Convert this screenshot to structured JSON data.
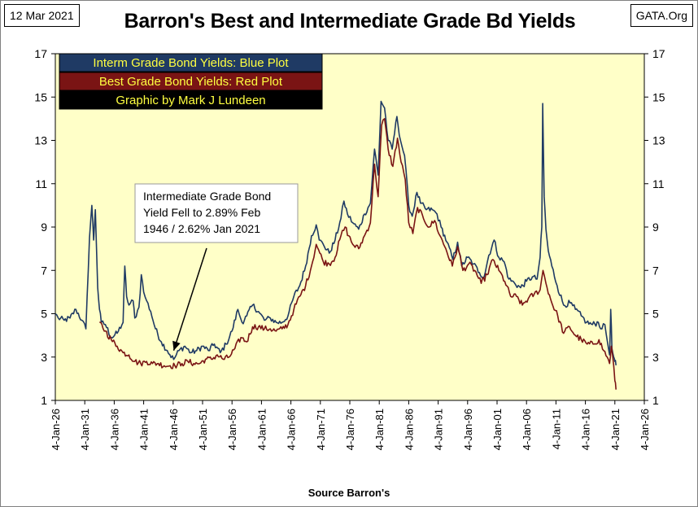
{
  "header": {
    "date": "12 Mar 2021",
    "site": "GATA.Org"
  },
  "chart_data": {
    "type": "line",
    "title": "Barron's Best and Intermediate Grade Bd Yields",
    "xlabel": "Source Barron's",
    "ylabel": "",
    "ylim": [
      1,
      17
    ],
    "yticks": [
      1,
      3,
      5,
      7,
      9,
      11,
      13,
      15,
      17
    ],
    "xlim": [
      1926,
      2026
    ],
    "xticks": [
      {
        "year": 1926,
        "label": "4-Jan-26"
      },
      {
        "year": 1931,
        "label": "4-Jan-31"
      },
      {
        "year": 1936,
        "label": "4-Jan-36"
      },
      {
        "year": 1941,
        "label": "4-Jan-41"
      },
      {
        "year": 1946,
        "label": "4-Jan-46"
      },
      {
        "year": 1951,
        "label": "4-Jan-51"
      },
      {
        "year": 1956,
        "label": "4-Jan-56"
      },
      {
        "year": 1961,
        "label": "4-Jan-61"
      },
      {
        "year": 1966,
        "label": "4-Jan-66"
      },
      {
        "year": 1971,
        "label": "4-Jan-71"
      },
      {
        "year": 1976,
        "label": "4-Jan-76"
      },
      {
        "year": 1981,
        "label": "4-Jan-81"
      },
      {
        "year": 1986,
        "label": "4-Jan-86"
      },
      {
        "year": 1991,
        "label": "4-Jan-91"
      },
      {
        "year": 1996,
        "label": "4-Jan-96"
      },
      {
        "year": 2001,
        "label": "4-Jan-01"
      },
      {
        "year": 2006,
        "label": "4-Jan-06"
      },
      {
        "year": 2011,
        "label": "4-Jan-11"
      },
      {
        "year": 2016,
        "label": "4-Jan-16"
      },
      {
        "year": 2021,
        "label": "4-Jan-21"
      },
      {
        "year": 2026,
        "label": "4-Jan-26"
      }
    ],
    "grid": false,
    "legend_position": "top-left",
    "legend": [
      {
        "text": "Interm Grade Bond Yields: Blue Plot",
        "bg": "#1f3a64"
      },
      {
        "text": "Best Grade Bond Yields: Red Plot",
        "bg": "#7a1414"
      },
      {
        "text": "Graphic by Mark J Lundeen",
        "bg": "#000000"
      }
    ],
    "annotation": {
      "lines": [
        "Intermediate Grade Bond",
        "Yield Fell to 2.89% Feb",
        "1946 / 2.62%  Jan 2021"
      ],
      "arrow_target": {
        "x": 1946.1,
        "y": 3.3
      }
    },
    "series": [
      {
        "color": "#1f3a64",
        "x": [
          1926.0,
          1926.5,
          1927.5,
          1928.5,
          1929.5,
          1930.5,
          1931.2,
          1931.8,
          1932.2,
          1932.5,
          1932.8,
          1933.2,
          1933.5,
          1933.8,
          1934.5,
          1935.5,
          1936.5,
          1937.5,
          1937.8,
          1938.1,
          1938.5,
          1939.2,
          1939.5,
          1940.2,
          1940.6,
          1941.0,
          1941.5,
          1942.2,
          1943.0,
          1944.0,
          1945.0,
          1946.1,
          1947.0,
          1948.0,
          1949.0,
          1950.0,
          1951.0,
          1952.0,
          1953.0,
          1954.0,
          1955.0,
          1956.0,
          1957.0,
          1957.7,
          1958.5,
          1959.5,
          1960.5,
          1961.5,
          1962.5,
          1963.5,
          1964.5,
          1965.5,
          1966.5,
          1967.5,
          1968.5,
          1969.5,
          1970.3,
          1970.8,
          1971.5,
          1972.5,
          1973.5,
          1974.5,
          1975.0,
          1975.6,
          1976.5,
          1977.5,
          1978.5,
          1979.5,
          1980.2,
          1980.8,
          1981.3,
          1981.9,
          1982.5,
          1983.2,
          1984.0,
          1984.6,
          1985.3,
          1986.0,
          1986.6,
          1987.4,
          1988.0,
          1989.0,
          1990.0,
          1990.8,
          1991.5,
          1992.5,
          1993.5,
          1994.3,
          1995.0,
          1996.0,
          1997.0,
          1998.0,
          1998.8,
          1999.6,
          2000.5,
          2001.3,
          2002.2,
          2003.0,
          2004.0,
          2005.0,
          2006.0,
          2007.0,
          2007.8,
          2008.3,
          2008.6,
          2008.75,
          2009.0,
          2009.3,
          2009.7,
          2010.3,
          2011.2,
          2012.3,
          2013.4,
          2014.3,
          2015.3,
          2016.2,
          2017.2,
          2018.2,
          2018.8,
          2019.3,
          2019.8,
          2020.1,
          2020.3,
          2020.5,
          2020.8,
          2021.0,
          2021.2
        ],
        "y": [
          5.0,
          4.8,
          4.7,
          4.8,
          5.2,
          4.7,
          4.3,
          8.5,
          10.0,
          8.4,
          9.8,
          6.2,
          5.2,
          4.6,
          4.5,
          3.9,
          4.1,
          4.6,
          7.2,
          5.8,
          5.4,
          5.6,
          4.8,
          5.3,
          6.8,
          6.0,
          5.6,
          5.1,
          4.3,
          3.7,
          3.3,
          2.89,
          3.3,
          3.5,
          3.2,
          3.3,
          3.5,
          3.3,
          3.6,
          3.2,
          3.6,
          4.2,
          5.2,
          4.6,
          4.9,
          5.4,
          5.1,
          4.7,
          4.8,
          4.6,
          4.6,
          4.9,
          5.8,
          6.3,
          7.2,
          8.6,
          9.1,
          8.4,
          8.2,
          7.8,
          8.4,
          9.4,
          10.2,
          9.6,
          9.2,
          8.9,
          9.6,
          10.1,
          12.6,
          11.4,
          14.8,
          14.5,
          13.0,
          12.6,
          14.1,
          13.0,
          12.3,
          10.0,
          9.5,
          10.6,
          10.1,
          9.8,
          9.8,
          9.6,
          9.0,
          8.3,
          7.5,
          8.3,
          7.2,
          7.6,
          7.3,
          6.9,
          6.7,
          7.7,
          8.4,
          7.6,
          7.4,
          6.6,
          6.4,
          6.2,
          6.5,
          6.7,
          6.6,
          7.6,
          9.0,
          14.7,
          10.4,
          8.9,
          7.9,
          7.2,
          6.3,
          5.4,
          5.5,
          5.2,
          4.9,
          4.6,
          4.5,
          4.6,
          4.3,
          4.5,
          3.6,
          3.1,
          5.2,
          3.4,
          3.0,
          2.8,
          2.62
        ]
      },
      {
        "color": "#7a1414",
        "x": [
          1933.5,
          1934.5,
          1935.5,
          1936.5,
          1937.5,
          1938.5,
          1939.5,
          1940.5,
          1941.5,
          1942.5,
          1943.5,
          1944.5,
          1945.5,
          1946.3,
          1947.5,
          1948.5,
          1949.5,
          1950.5,
          1951.5,
          1952.5,
          1953.5,
          1954.5,
          1955.5,
          1956.5,
          1957.5,
          1958.5,
          1959.5,
          1960.5,
          1961.5,
          1962.5,
          1963.5,
          1964.5,
          1965.5,
          1966.5,
          1967.5,
          1968.5,
          1969.5,
          1970.3,
          1970.9,
          1971.5,
          1972.5,
          1973.5,
          1974.5,
          1975.2,
          1975.8,
          1976.5,
          1977.5,
          1978.5,
          1979.5,
          1980.2,
          1980.8,
          1981.4,
          1981.9,
          1982.5,
          1983.3,
          1984.1,
          1984.7,
          1985.4,
          1986.0,
          1986.7,
          1987.5,
          1988.5,
          1989.5,
          1990.4,
          1991.3,
          1992.3,
          1993.4,
          1994.3,
          1995.2,
          1996.2,
          1997.2,
          1998.3,
          1999.3,
          2000.3,
          2001.3,
          2002.3,
          2003.3,
          2004.3,
          2005.3,
          2006.3,
          2007.3,
          2008.3,
          2008.8,
          2009.3,
          2010.3,
          2011.3,
          2012.3,
          2013.3,
          2014.3,
          2015.3,
          2016.3,
          2017.3,
          2018.3,
          2019.1,
          2019.7,
          2020.1,
          2020.4,
          2020.8,
          2021.0,
          2021.2
        ],
        "y": [
          4.6,
          4.2,
          3.8,
          3.5,
          3.2,
          3.1,
          2.8,
          2.7,
          2.8,
          2.7,
          2.7,
          2.6,
          2.6,
          2.6,
          2.7,
          2.8,
          2.7,
          2.7,
          2.9,
          2.9,
          3.1,
          2.9,
          3.0,
          3.4,
          3.9,
          3.7,
          4.4,
          4.4,
          4.3,
          4.3,
          4.2,
          4.3,
          4.5,
          5.2,
          5.8,
          6.3,
          7.2,
          8.2,
          7.8,
          7.4,
          7.3,
          7.6,
          8.6,
          9.0,
          8.6,
          8.2,
          8.0,
          8.6,
          9.2,
          11.9,
          10.4,
          13.7,
          14.0,
          12.6,
          11.8,
          13.1,
          12.0,
          11.2,
          9.2,
          8.7,
          9.9,
          9.4,
          9.0,
          9.3,
          8.6,
          8.0,
          7.2,
          8.1,
          7.0,
          7.3,
          7.0,
          6.4,
          6.8,
          7.5,
          7.0,
          6.5,
          5.8,
          5.8,
          5.4,
          5.7,
          5.9,
          6.1,
          7.0,
          6.4,
          5.5,
          4.9,
          4.1,
          4.4,
          4.0,
          3.8,
          3.6,
          3.6,
          3.8,
          3.3,
          3.0,
          2.7,
          3.5,
          2.6,
          1.9,
          1.5
        ]
      }
    ]
  }
}
